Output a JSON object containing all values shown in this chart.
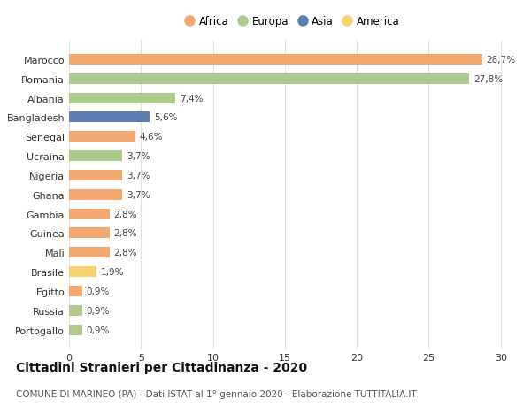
{
  "countries": [
    "Marocco",
    "Romania",
    "Albania",
    "Bangladesh",
    "Senegal",
    "Ucraina",
    "Nigeria",
    "Ghana",
    "Gambia",
    "Guinea",
    "Mali",
    "Brasile",
    "Egitto",
    "Russia",
    "Portogallo"
  ],
  "values": [
    28.7,
    27.8,
    7.4,
    5.6,
    4.6,
    3.7,
    3.7,
    3.7,
    2.8,
    2.8,
    2.8,
    1.9,
    0.9,
    0.9,
    0.9
  ],
  "continents": [
    "Africa",
    "Europa",
    "Europa",
    "Asia",
    "Africa",
    "Europa",
    "Africa",
    "Africa",
    "Africa",
    "Africa",
    "Africa",
    "America",
    "Africa",
    "Europa",
    "Europa"
  ],
  "labels": [
    "28,7%",
    "27,8%",
    "7,4%",
    "5,6%",
    "4,6%",
    "3,7%",
    "3,7%",
    "3,7%",
    "2,8%",
    "2,8%",
    "2,8%",
    "1,9%",
    "0,9%",
    "0,9%",
    "0,9%"
  ],
  "continent_colors": {
    "Africa": "#F4A870",
    "Europa": "#AECA8C",
    "Asia": "#5B7EB5",
    "America": "#F5D26B"
  },
  "legend_order": [
    "Africa",
    "Europa",
    "Asia",
    "America"
  ],
  "xlim": [
    0,
    31
  ],
  "xticks": [
    0,
    5,
    10,
    15,
    20,
    25,
    30
  ],
  "title": "Cittadini Stranieri per Cittadinanza - 2020",
  "subtitle": "COMUNE DI MARINEO (PA) - Dati ISTAT al 1° gennaio 2020 - Elaborazione TUTTITALIA.IT",
  "background_color": "#ffffff",
  "grid_color": "#e0e0e0",
  "bar_height": 0.55,
  "title_fontsize": 10,
  "subtitle_fontsize": 7.5,
  "label_fontsize": 7.5,
  "tick_fontsize": 8,
  "legend_fontsize": 8.5
}
